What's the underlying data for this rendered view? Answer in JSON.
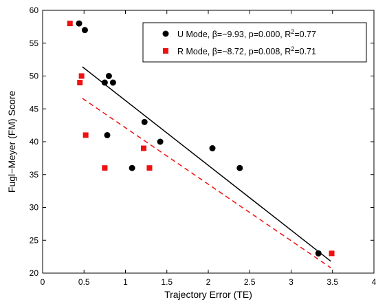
{
  "chart_data": {
    "type": "scatter",
    "xlabel": "Trajectory Error (TE)",
    "ylabel": "Fugl−Meyer (FM) Score",
    "xlim": [
      0,
      4
    ],
    "ylim": [
      20,
      60
    ],
    "x_ticks": [
      "0",
      "0.5",
      "1",
      "1.5",
      "2",
      "2.5",
      "3",
      "3.5",
      "4"
    ],
    "y_ticks": [
      "20",
      "25",
      "30",
      "35",
      "40",
      "45",
      "50",
      "55",
      "60"
    ],
    "grid": false,
    "legend_position": "top-right",
    "series": [
      {
        "name": "U Mode",
        "legend_text": "U Mode, β=−9.93, p=0.000, R",
        "legend_sup": "2",
        "legend_tail": "=0.77",
        "marker": "circle",
        "color": "#000000",
        "points": [
          {
            "x": 0.44,
            "y": 58
          },
          {
            "x": 0.51,
            "y": 57
          },
          {
            "x": 0.75,
            "y": 49
          },
          {
            "x": 0.8,
            "y": 50
          },
          {
            "x": 0.85,
            "y": 49
          },
          {
            "x": 0.78,
            "y": 41
          },
          {
            "x": 1.08,
            "y": 36
          },
          {
            "x": 1.23,
            "y": 43
          },
          {
            "x": 1.42,
            "y": 40
          },
          {
            "x": 2.05,
            "y": 39
          },
          {
            "x": 2.38,
            "y": 36
          },
          {
            "x": 3.33,
            "y": 23
          }
        ],
        "fit": {
          "x": [
            0.48,
            3.48
          ],
          "y": [
            51.4,
            21.8
          ],
          "dash": "solid"
        }
      },
      {
        "name": "R Mode",
        "legend_text": "R Mode, β=−8.72, p=0.008, R",
        "legend_sup": "2",
        "legend_tail": "=0.71",
        "marker": "square",
        "color": "#ee1111",
        "points": [
          {
            "x": 0.33,
            "y": 58
          },
          {
            "x": 0.45,
            "y": 49
          },
          {
            "x": 0.47,
            "y": 50
          },
          {
            "x": 0.52,
            "y": 41
          },
          {
            "x": 0.75,
            "y": 36
          },
          {
            "x": 1.22,
            "y": 39
          },
          {
            "x": 1.29,
            "y": 36
          },
          {
            "x": 3.49,
            "y": 23
          }
        ],
        "fit": {
          "x": [
            0.48,
            3.48
          ],
          "y": [
            46.6,
            20.8
          ],
          "dash": "dashed"
        }
      }
    ]
  }
}
